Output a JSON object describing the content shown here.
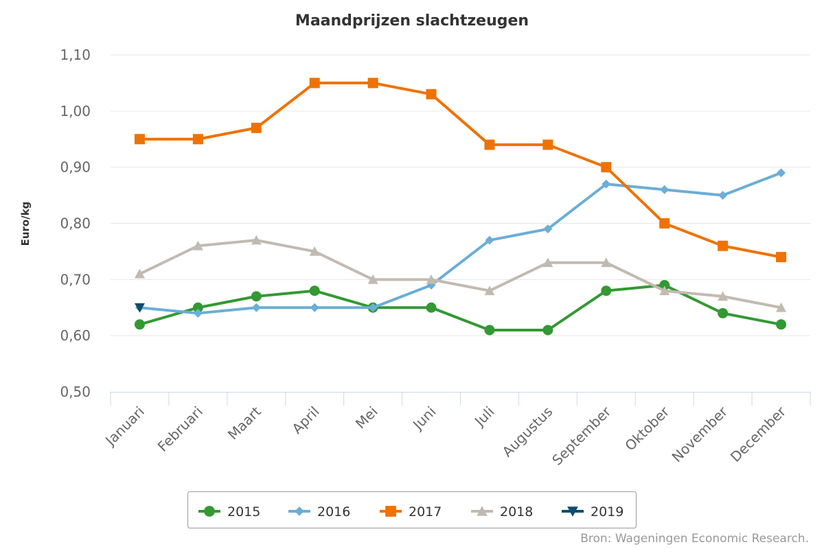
{
  "chart_data": {
    "type": "line",
    "title": "Maandprijzen slachtzeugen",
    "xlabel": "",
    "ylabel": "Euro/kg",
    "ylim": [
      0.5,
      1.1
    ],
    "yticks": [
      "0,50",
      "0,60",
      "0,70",
      "0,80",
      "0,90",
      "1,00",
      "1,10"
    ],
    "grid": true,
    "categories": [
      "Januari",
      "Februari",
      "Maart",
      "April",
      "Mei",
      "Juni",
      "Juli",
      "Augustus",
      "September",
      "Oktober",
      "November",
      "December"
    ],
    "series": [
      {
        "name": "2015",
        "color": "#339933",
        "marker": "circle",
        "values": [
          0.62,
          0.65,
          0.67,
          0.68,
          0.65,
          0.65,
          0.61,
          0.61,
          0.68,
          0.69,
          0.64,
          0.62
        ]
      },
      {
        "name": "2016",
        "color": "#6baed6",
        "marker": "diamond",
        "values": [
          0.65,
          0.64,
          0.65,
          0.65,
          0.65,
          0.69,
          0.77,
          0.79,
          0.87,
          0.86,
          0.85,
          0.89
        ]
      },
      {
        "name": "2017",
        "color": "#ee7203",
        "marker": "square",
        "values": [
          0.95,
          0.95,
          0.97,
          1.05,
          1.05,
          1.03,
          0.94,
          0.94,
          0.9,
          0.8,
          0.76,
          0.74
        ]
      },
      {
        "name": "2018",
        "color": "#c2bab1",
        "marker": "triangle",
        "values": [
          0.71,
          0.76,
          0.77,
          0.75,
          0.7,
          0.7,
          0.68,
          0.73,
          0.73,
          0.68,
          0.67,
          0.65
        ]
      },
      {
        "name": "2019",
        "color": "#0e4d6e",
        "marker": "triangle-down",
        "values": [
          0.65,
          null,
          null,
          null,
          null,
          null,
          null,
          null,
          null,
          null,
          null,
          null
        ]
      }
    ],
    "legend_position": "bottom-center",
    "credit": "Bron: Wageningen Economic Research."
  }
}
